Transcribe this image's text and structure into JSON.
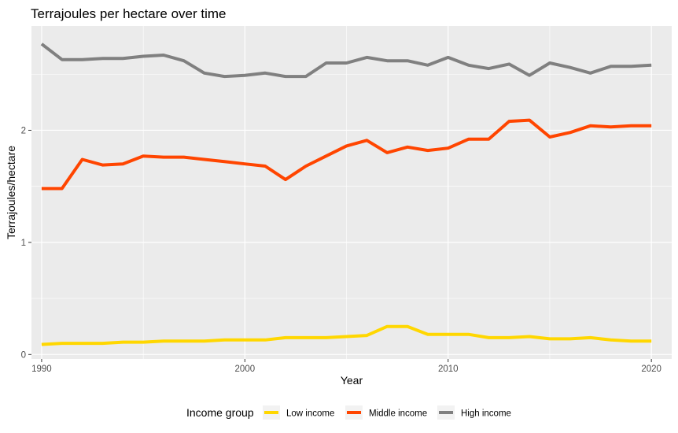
{
  "chart_data": {
    "type": "line",
    "title": "Terrajoules per hectare over time",
    "xlabel": "Year",
    "ylabel": "Terrajoules/hectare",
    "xlim": [
      1989.5,
      2021.0
    ],
    "ylim": [
      -0.04,
      2.93
    ],
    "x_ticks": [
      1990,
      2000,
      2010,
      2020
    ],
    "y_ticks": [
      0,
      1,
      2
    ],
    "x_minor_ticks": [
      1995,
      2005,
      2015
    ],
    "y_minor_ticks": [
      0.5,
      1.5,
      2.5
    ],
    "grid": true,
    "legend": {
      "title": "Income group",
      "position": "bottom"
    },
    "x": [
      1990,
      1991,
      1992,
      1993,
      1994,
      1995,
      1996,
      1997,
      1998,
      1999,
      2000,
      2001,
      2002,
      2003,
      2004,
      2005,
      2006,
      2007,
      2008,
      2009,
      2010,
      2011,
      2012,
      2013,
      2014,
      2015,
      2016,
      2017,
      2018,
      2019,
      2020
    ],
    "series": [
      {
        "name": "Low income",
        "color": "#FFD700",
        "values": [
          0.09,
          0.1,
          0.1,
          0.1,
          0.11,
          0.11,
          0.12,
          0.12,
          0.12,
          0.13,
          0.13,
          0.13,
          0.15,
          0.15,
          0.15,
          0.16,
          0.17,
          0.25,
          0.25,
          0.18,
          0.18,
          0.18,
          0.15,
          0.15,
          0.16,
          0.14,
          0.14,
          0.15,
          0.13,
          0.12,
          0.12
        ]
      },
      {
        "name": "Middle income",
        "color": "#FF4500",
        "values": [
          1.48,
          1.48,
          1.74,
          1.69,
          1.7,
          1.77,
          1.76,
          1.76,
          1.74,
          1.72,
          1.7,
          1.68,
          1.56,
          1.68,
          1.77,
          1.86,
          1.91,
          1.8,
          1.85,
          1.82,
          1.84,
          1.92,
          1.92,
          2.08,
          2.09,
          1.94,
          1.98,
          2.04,
          2.03,
          2.04,
          2.04
        ]
      },
      {
        "name": "High income",
        "color": "#808080",
        "values": [
          2.77,
          2.63,
          2.63,
          2.64,
          2.64,
          2.66,
          2.67,
          2.62,
          2.51,
          2.48,
          2.49,
          2.51,
          2.48,
          2.48,
          2.6,
          2.6,
          2.65,
          2.62,
          2.62,
          2.58,
          2.65,
          2.58,
          2.55,
          2.59,
          2.49,
          2.6,
          2.56,
          2.51,
          2.57,
          2.57,
          2.58
        ]
      }
    ]
  }
}
